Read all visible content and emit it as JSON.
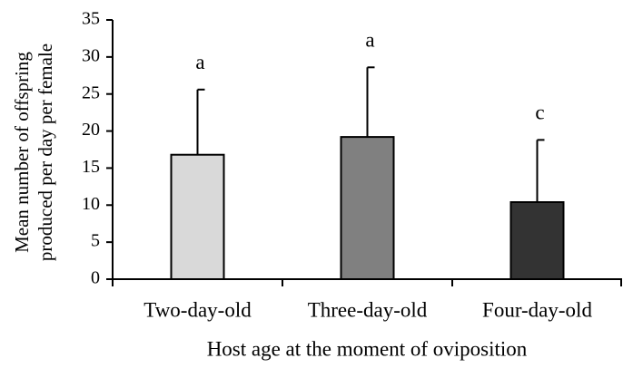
{
  "chart_data": {
    "type": "bar",
    "categories": [
      "Two-day-old",
      "Three-day-old",
      "Four-day-old"
    ],
    "values": [
      16.8,
      19.2,
      10.4
    ],
    "errors": [
      8.8,
      9.4,
      8.4
    ],
    "annotations": [
      "a",
      "a",
      "c"
    ],
    "colors": [
      "#d9d9d9",
      "#808080",
      "#333333"
    ],
    "xlabel": "Host age at the moment of oviposition",
    "ylabel": [
      "Mean number of offspring",
      "produced per day per female"
    ],
    "ylim": [
      0,
      35
    ],
    "yticks": [
      0,
      5,
      10,
      15,
      20,
      25,
      30,
      35
    ],
    "grid": false
  }
}
